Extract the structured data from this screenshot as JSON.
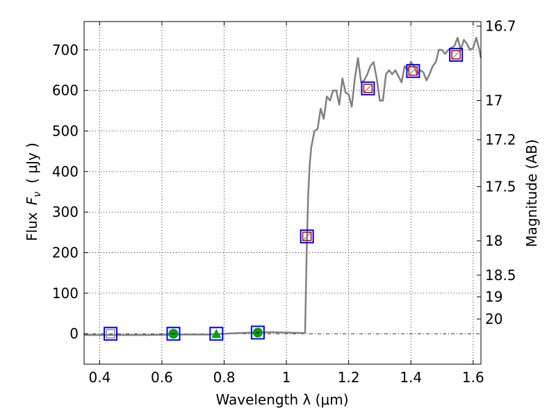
{
  "chart_data": {
    "type": "line",
    "title": "",
    "xlabel": "Wavelength  λ (μm)",
    "ylabel": "Flux  F_ν  ( μJy )",
    "ylabel_parts": {
      "prefix": "Flux",
      "symbol": "F",
      "subscript": "ν",
      "unit": "( μJy )"
    },
    "y2label": "Magnitude (AB)",
    "xlim": [
      0.35,
      1.625
    ],
    "ylim": [
      -75,
      770
    ],
    "grid": true,
    "x_ticks": [
      0.4,
      0.6,
      0.8,
      1.0,
      1.2,
      1.4,
      1.6
    ],
    "x_tick_labels": [
      "0.4",
      "0.6",
      "0.8",
      "1",
      "1.2",
      "1.4",
      "1.6"
    ],
    "y_ticks": [
      0,
      100,
      200,
      300,
      400,
      500,
      600,
      700
    ],
    "y_tick_labels": [
      "0",
      "100",
      "200",
      "300",
      "400",
      "500",
      "600",
      "700"
    ],
    "y2_ticks": [
      {
        "label": "16.7",
        "mag": 16.7
      },
      {
        "label": "17",
        "mag": 17.0
      },
      {
        "label": "17.2",
        "mag": 17.2
      },
      {
        "label": "17.5",
        "mag": 17.5
      },
      {
        "label": "18",
        "mag": 18.0
      },
      {
        "label": "18.5",
        "mag": 18.5
      },
      {
        "label": "19",
        "mag": 19.0
      },
      {
        "label": "20",
        "mag": 20.0
      }
    ],
    "colors": {
      "model": "#808080",
      "square": "#0000ff",
      "marker_green": "#00a000",
      "marker_red": "#cc0000",
      "zero_line": "#000000"
    },
    "series": [
      {
        "style": "line",
        "x": [
          0.35,
          0.45,
          0.55,
          0.65,
          0.75,
          0.85,
          0.9,
          0.95,
          1.0,
          1.05,
          1.06,
          1.065,
          1.07,
          1.075,
          1.08,
          1.09,
          1.1,
          1.11,
          1.12,
          1.13,
          1.14,
          1.15,
          1.16,
          1.17,
          1.18,
          1.19,
          1.2,
          1.21,
          1.22,
          1.23,
          1.24,
          1.25,
          1.26,
          1.27,
          1.28,
          1.29,
          1.3,
          1.31,
          1.32,
          1.33,
          1.34,
          1.35,
          1.36,
          1.37,
          1.38,
          1.39,
          1.4,
          1.41,
          1.42,
          1.43,
          1.44,
          1.45,
          1.46,
          1.47,
          1.48,
          1.49,
          1.5,
          1.51,
          1.52,
          1.53,
          1.54,
          1.55,
          1.56,
          1.57,
          1.58,
          1.59,
          1.6,
          1.61,
          1.62,
          1.625
        ],
        "y": [
          -3,
          -3,
          -3,
          -2,
          -2,
          2,
          3,
          4,
          3,
          2,
          2,
          200,
          340,
          420,
          460,
          500,
          505,
          555,
          530,
          585,
          575,
          600,
          600,
          565,
          630,
          595,
          590,
          560,
          630,
          680,
          620,
          625,
          640,
          660,
          670,
          630,
          575,
          575,
          640,
          650,
          640,
          650,
          635,
          620,
          660,
          650,
          670,
          660,
          640,
          650,
          645,
          625,
          640,
          660,
          670,
          700,
          700,
          690,
          700,
          705,
          710,
          730,
          700,
          725,
          715,
          700,
          705,
          730,
          700,
          680
        ]
      },
      {
        "style": "markers",
        "x": [
          0.435,
          0.637,
          0.775,
          0.908,
          1.066,
          1.262,
          1.407,
          1.545
        ],
        "y": [
          0,
          0,
          0,
          3,
          240,
          605,
          648,
          688
        ],
        "inner_markers": [
          "square-grey",
          "circle-green",
          "triangle-green",
          "circle-green",
          "square-red",
          "square-red",
          "square-red",
          "square-red"
        ]
      }
    ]
  }
}
